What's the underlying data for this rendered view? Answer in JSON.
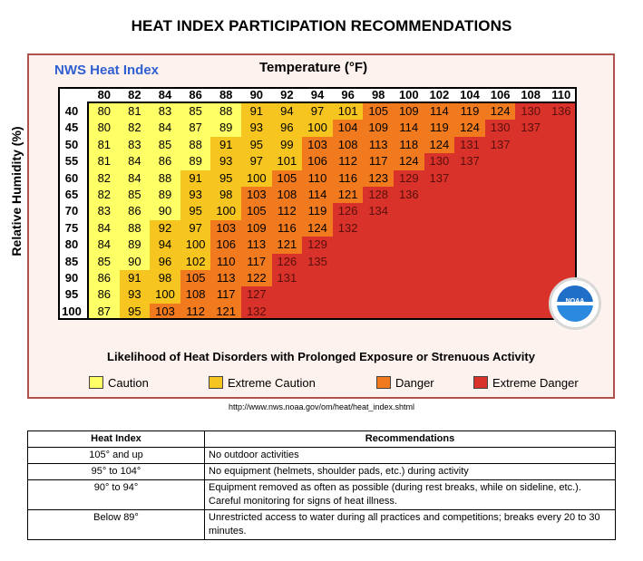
{
  "page_title": "HEAT INDEX PARTICIPATION RECOMMENDATIONS",
  "chart": {
    "brand_title": "NWS Heat Index",
    "temperature_title": "Temperature (°F)",
    "humidity_title": "Relative Humidity (%)",
    "temperatures": [
      "80",
      "82",
      "84",
      "86",
      "88",
      "90",
      "92",
      "94",
      "96",
      "98",
      "100",
      "102",
      "104",
      "106",
      "108",
      "110"
    ],
    "humidities": [
      "40",
      "45",
      "50",
      "55",
      "60",
      "65",
      "70",
      "75",
      "80",
      "85",
      "90",
      "95",
      "100"
    ],
    "rows": [
      [
        "80",
        "81",
        "83",
        "85",
        "88",
        "91",
        "94",
        "97",
        "101",
        "105",
        "109",
        "114",
        "119",
        "124",
        "130",
        "136"
      ],
      [
        "80",
        "82",
        "84",
        "87",
        "89",
        "93",
        "96",
        "100",
        "104",
        "109",
        "114",
        "119",
        "124",
        "130",
        "137"
      ],
      [
        "81",
        "83",
        "85",
        "88",
        "91",
        "95",
        "99",
        "103",
        "108",
        "113",
        "118",
        "124",
        "131",
        "137"
      ],
      [
        "81",
        "84",
        "86",
        "89",
        "93",
        "97",
        "101",
        "106",
        "112",
        "117",
        "124",
        "130",
        "137"
      ],
      [
        "82",
        "84",
        "88",
        "91",
        "95",
        "100",
        "105",
        "110",
        "116",
        "123",
        "129",
        "137"
      ],
      [
        "82",
        "85",
        "89",
        "93",
        "98",
        "103",
        "108",
        "114",
        "121",
        "128",
        "136"
      ],
      [
        "83",
        "86",
        "90",
        "95",
        "100",
        "105",
        "112",
        "119",
        "126",
        "134"
      ],
      [
        "84",
        "88",
        "92",
        "97",
        "103",
        "109",
        "116",
        "124",
        "132"
      ],
      [
        "84",
        "89",
        "94",
        "100",
        "106",
        "113",
        "121",
        "129"
      ],
      [
        "85",
        "90",
        "96",
        "102",
        "110",
        "117",
        "126",
        "135"
      ],
      [
        "86",
        "91",
        "98",
        "105",
        "113",
        "122",
        "131"
      ],
      [
        "86",
        "93",
        "100",
        "108",
        "117",
        "127"
      ],
      [
        "87",
        "95",
        "103",
        "112",
        "121",
        "132"
      ]
    ],
    "caption": "Likelihood of Heat Disorders with Prolonged Exposure or Strenuous Activity",
    "legend": [
      {
        "label": "Caution",
        "color": "#ffff66"
      },
      {
        "label": "Extreme Caution",
        "color": "#f7c520"
      },
      {
        "label": "Danger",
        "color": "#f27a1e"
      },
      {
        "label": "Extreme Danger",
        "color": "#d8322a"
      }
    ],
    "logo_text": "NOAA",
    "level_colors": {
      "caution": "#ffff66",
      "extreme_caution": "#f7c520",
      "danger": "#f27a1e",
      "extreme_danger": "#d8322a"
    }
  },
  "source_url": "http://www.nws.noaa.gov/om/heat/heat_index.shtml",
  "table": {
    "headers": [
      "Heat Index",
      "Recommendations"
    ],
    "rows": [
      {
        "index": "105° and up",
        "rec": "No outdoor activities"
      },
      {
        "index": "95° to 104°",
        "rec": "No equipment (helmets, shoulder pads, etc.) during activity"
      },
      {
        "index": "90° to 94°",
        "rec": "Equipment removed as often as possible (during rest breaks, while on sideline, etc.).  Careful monitoring for signs of heat illness."
      },
      {
        "index": "Below 89°",
        "rec": "Unrestricted access to water during all practices and competitions; breaks every 20 to 30 minutes."
      }
    ]
  }
}
